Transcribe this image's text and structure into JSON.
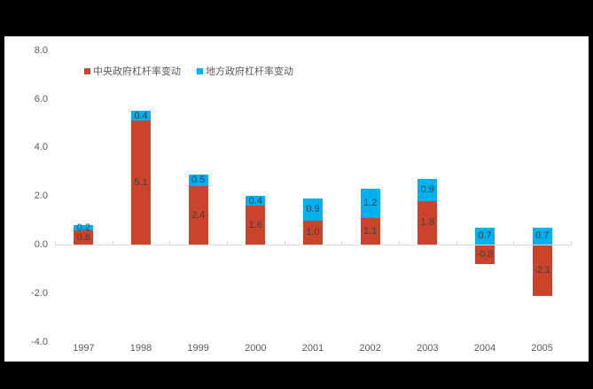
{
  "chart_data": {
    "type": "bar",
    "stacked": true,
    "title": "",
    "xlabel": "",
    "ylabel": "",
    "categories": [
      "1997",
      "1998",
      "1999",
      "2000",
      "2001",
      "2002",
      "2003",
      "2004",
      "2005"
    ],
    "series": [
      {
        "name": "中央政府杠杆率变动",
        "color": "#C9442A",
        "values": [
          0.6,
          5.1,
          2.4,
          1.6,
          1.0,
          1.1,
          1.8,
          -0.8,
          -2.1
        ]
      },
      {
        "name": "地方政府杠杆率变动",
        "color": "#00B0F0",
        "values": [
          0.2,
          0.4,
          0.5,
          0.4,
          0.9,
          1.2,
          0.9,
          0.7,
          0.7
        ]
      }
    ],
    "ylim": [
      -4.0,
      8.0
    ],
    "yticks": [
      "8.0",
      "6.0",
      "4.0",
      "2.0",
      "0.0",
      "-2.0",
      "-4.0"
    ],
    "legend_position": "top-left",
    "grid": false,
    "data_labels": true
  }
}
